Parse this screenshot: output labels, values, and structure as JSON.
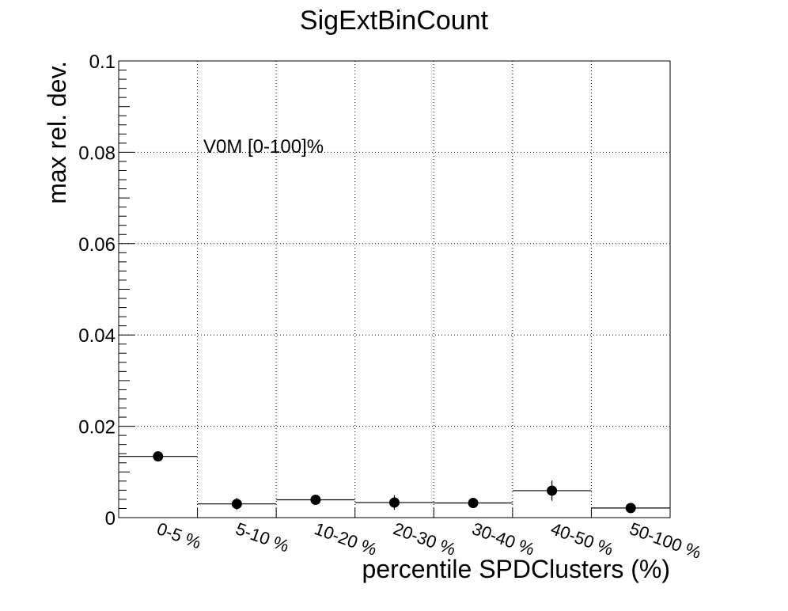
{
  "chart_data": {
    "type": "scatter",
    "title": "SigExtBinCount",
    "xlabel": "percentile SPDClusters (%)",
    "ylabel": "max rel. dev.",
    "annotation": "V0M [0-100]%",
    "categories": [
      "0-5 %",
      "5-10 %",
      "10-20 %",
      "20-30 %",
      "30-40 %",
      "40-50 %",
      "50-100 %"
    ],
    "values": [
      0.0134,
      0.003,
      0.0039,
      0.0033,
      0.0032,
      0.0059,
      0.0021
    ],
    "errors": [
      0.0005,
      0.0013,
      0.001,
      0.0016,
      0.0011,
      0.0022,
      0.0005
    ],
    "ylim": [
      0,
      0.1
    ],
    "yticks": [
      "0",
      "0.02",
      "0.04",
      "0.06",
      "0.08",
      "0.1"
    ],
    "ytick_values": [
      0,
      0.02,
      0.04,
      0.06,
      0.08,
      0.1
    ],
    "grid": true,
    "colors": {
      "marker": "#000000",
      "grid": "#000000",
      "background": "#ffffff"
    }
  }
}
